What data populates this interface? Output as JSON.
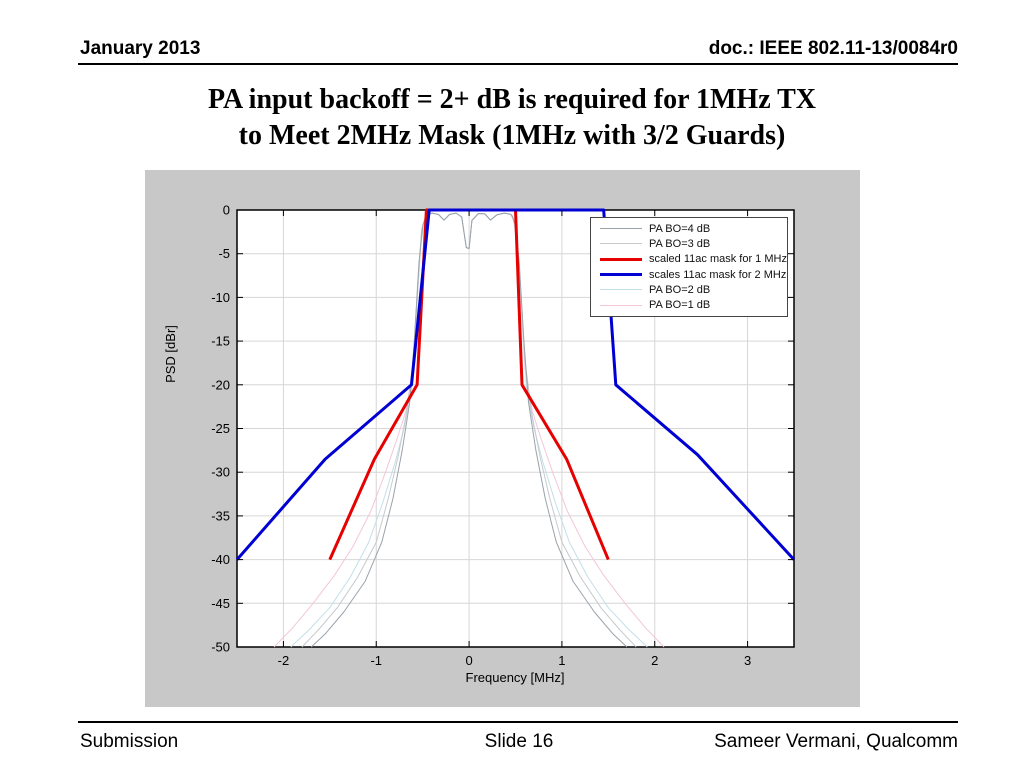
{
  "header": {
    "date": "January 2013",
    "doc": "doc.: IEEE 802.11-13/0084r0"
  },
  "title_line1": "PA input backoff = 2+ dB is required for 1MHz TX",
  "title_line2": "to Meet 2MHz Mask (1MHz with 3/2 Guards)",
  "footer": {
    "left": "Submission",
    "center": "Slide 16",
    "right": "Sameer Vermani, Qualcomm"
  },
  "chart_data": {
    "type": "line",
    "title": "",
    "xlabel": "Frequency [MHz]",
    "ylabel": "PSD [dBr]",
    "xlim": [
      -2.5,
      3.5
    ],
    "ylim": [
      -50,
      0
    ],
    "xticks": [
      -2,
      -1,
      0,
      1,
      2,
      3
    ],
    "yticks": [
      0,
      -5,
      -10,
      -15,
      -20,
      -25,
      -30,
      -35,
      -40,
      -45,
      -50
    ],
    "grid": true,
    "legend_position": "upper-right-inside",
    "panel_bg": "#c8c8c8",
    "plot_bg": "#ffffff",
    "grid_color": "#d6d6d6",
    "axis_color": "#000000",
    "draw_order": [
      5,
      4,
      1,
      0,
      2,
      3
    ],
    "series": [
      {
        "name": "PA BO=4 dB",
        "color": "#9aa2aa",
        "width": 1,
        "points": [
          [
            -1.7,
            -50
          ],
          [
            -1.55,
            -48.5
          ],
          [
            -1.35,
            -46
          ],
          [
            -1.12,
            -42.5
          ],
          [
            -0.94,
            -38
          ],
          [
            -0.82,
            -33
          ],
          [
            -0.72,
            -27.5
          ],
          [
            -0.64,
            -22
          ],
          [
            -0.59,
            -15
          ],
          [
            -0.54,
            -6
          ],
          [
            -0.5,
            -1.8
          ],
          [
            -0.47,
            -0.85
          ],
          [
            -0.45,
            -0.5
          ],
          [
            -0.4,
            -0.35
          ],
          [
            -0.33,
            -0.5
          ],
          [
            -0.27,
            -1.15
          ],
          [
            -0.21,
            -0.5
          ],
          [
            -0.14,
            -0.35
          ],
          [
            -0.08,
            -0.8
          ],
          [
            -0.03,
            -4.3
          ],
          [
            0,
            -4.4
          ],
          [
            0.03,
            -1.2
          ],
          [
            0.1,
            -0.4
          ],
          [
            0.17,
            -0.45
          ],
          [
            0.23,
            -1.15
          ],
          [
            0.3,
            -0.55
          ],
          [
            0.38,
            -0.35
          ],
          [
            0.45,
            -0.5
          ],
          [
            0.47,
            -0.85
          ],
          [
            0.5,
            -1.8
          ],
          [
            0.54,
            -6
          ],
          [
            0.59,
            -15
          ],
          [
            0.64,
            -22
          ],
          [
            0.72,
            -27.5
          ],
          [
            0.82,
            -33
          ],
          [
            0.94,
            -38
          ],
          [
            1.12,
            -42.5
          ],
          [
            1.35,
            -46
          ],
          [
            1.55,
            -48.5
          ],
          [
            1.7,
            -50
          ]
        ]
      },
      {
        "name": "PA BO=3 dB",
        "color": "#c6cacd",
        "width": 1,
        "points": [
          [
            -1.8,
            -50
          ],
          [
            -1.62,
            -48
          ],
          [
            -1.42,
            -45.5
          ],
          [
            -1.2,
            -42
          ],
          [
            -1.0,
            -38
          ],
          [
            -0.87,
            -33
          ],
          [
            -0.76,
            -28
          ],
          [
            -0.67,
            -23
          ],
          [
            -0.6,
            -17
          ],
          [
            -0.55,
            -8
          ],
          [
            -0.51,
            -2.2
          ],
          [
            -0.47,
            -0.8
          ],
          [
            -0.45,
            -0.5
          ],
          [
            -0.4,
            -0.35
          ],
          [
            -0.33,
            -0.5
          ],
          [
            -0.27,
            -1.15
          ],
          [
            -0.21,
            -0.5
          ],
          [
            -0.14,
            -0.35
          ],
          [
            -0.08,
            -0.8
          ],
          [
            -0.03,
            -4.3
          ],
          [
            0,
            -4.4
          ],
          [
            0.03,
            -1.2
          ],
          [
            0.1,
            -0.4
          ],
          [
            0.17,
            -0.45
          ],
          [
            0.23,
            -1.15
          ],
          [
            0.3,
            -0.55
          ],
          [
            0.38,
            -0.35
          ],
          [
            0.45,
            -0.5
          ],
          [
            0.47,
            -0.8
          ],
          [
            0.51,
            -2.2
          ],
          [
            0.55,
            -8
          ],
          [
            0.6,
            -17
          ],
          [
            0.67,
            -23
          ],
          [
            0.76,
            -28
          ],
          [
            0.87,
            -33
          ],
          [
            1.0,
            -38
          ],
          [
            1.2,
            -42
          ],
          [
            1.42,
            -45.5
          ],
          [
            1.62,
            -48
          ],
          [
            1.8,
            -50
          ]
        ]
      },
      {
        "name": "scaled 11ac mask for 1 MHz",
        "color": "#e60000",
        "width": 3,
        "points": [
          [
            -1.5,
            -40
          ],
          [
            -1.02,
            -28.5
          ],
          [
            -0.56,
            -20
          ],
          [
            -0.46,
            0
          ],
          [
            0.5,
            0
          ],
          [
            0.57,
            -20
          ],
          [
            1.05,
            -28.5
          ],
          [
            1.5,
            -40
          ]
        ]
      },
      {
        "name": "scales 11ac mask for 2 MHz",
        "color": "#0000d2",
        "width": 3,
        "points": [
          [
            -2.5,
            -40
          ],
          [
            -1.55,
            -28.5
          ],
          [
            -0.62,
            -20
          ],
          [
            -0.43,
            0
          ],
          [
            1.45,
            0
          ],
          [
            1.58,
            -20
          ],
          [
            2.46,
            -28
          ],
          [
            3.5,
            -40
          ]
        ]
      },
      {
        "name": "PA BO=2 dB",
        "color": "#c3dfe9",
        "width": 1,
        "points": [
          [
            -1.92,
            -50
          ],
          [
            -1.72,
            -48
          ],
          [
            -1.5,
            -45.5
          ],
          [
            -1.28,
            -42
          ],
          [
            -1.08,
            -38
          ],
          [
            -0.93,
            -33.5
          ],
          [
            -0.8,
            -29
          ],
          [
            -0.7,
            -25
          ],
          [
            -0.62,
            -20.5
          ],
          [
            -0.57,
            -12
          ],
          [
            -0.52,
            -4
          ],
          [
            -0.48,
            -1.2
          ],
          [
            -0.45,
            -0.5
          ],
          [
            -0.4,
            -0.35
          ],
          [
            -0.33,
            -0.5
          ],
          [
            -0.27,
            -1.15
          ],
          [
            -0.21,
            -0.5
          ],
          [
            -0.14,
            -0.35
          ],
          [
            -0.08,
            -0.8
          ],
          [
            -0.03,
            -4.3
          ],
          [
            0,
            -4.4
          ],
          [
            0.03,
            -1.2
          ],
          [
            0.1,
            -0.4
          ],
          [
            0.17,
            -0.45
          ],
          [
            0.23,
            -1.15
          ],
          [
            0.3,
            -0.55
          ],
          [
            0.38,
            -0.35
          ],
          [
            0.45,
            -0.5
          ],
          [
            0.48,
            -1.2
          ],
          [
            0.52,
            -4
          ],
          [
            0.57,
            -12
          ],
          [
            0.62,
            -20.5
          ],
          [
            0.7,
            -25
          ],
          [
            0.8,
            -29
          ],
          [
            0.93,
            -33.5
          ],
          [
            1.08,
            -38
          ],
          [
            1.28,
            -42
          ],
          [
            1.5,
            -45.5
          ],
          [
            1.72,
            -48
          ],
          [
            1.92,
            -50
          ]
        ]
      },
      {
        "name": "PA BO=1 dB",
        "color": "#f3c6da",
        "width": 1,
        "points": [
          [
            -2.1,
            -50
          ],
          [
            -1.9,
            -47.8
          ],
          [
            -1.68,
            -45
          ],
          [
            -1.45,
            -41.8
          ],
          [
            -1.25,
            -38.5
          ],
          [
            -1.06,
            -34.5
          ],
          [
            -0.9,
            -30
          ],
          [
            -0.78,
            -26.3
          ],
          [
            -0.68,
            -23
          ],
          [
            -0.6,
            -18
          ],
          [
            -0.55,
            -9
          ],
          [
            -0.51,
            -2.5
          ],
          [
            -0.47,
            -0.7
          ],
          [
            -0.45,
            -0.5
          ],
          [
            -0.4,
            -0.35
          ],
          [
            -0.33,
            -0.5
          ],
          [
            -0.27,
            -1.15
          ],
          [
            -0.21,
            -0.5
          ],
          [
            -0.14,
            -0.35
          ],
          [
            -0.08,
            -0.8
          ],
          [
            -0.03,
            -4.3
          ],
          [
            0,
            -4.4
          ],
          [
            0.03,
            -1.2
          ],
          [
            0.1,
            -0.4
          ],
          [
            0.17,
            -0.45
          ],
          [
            0.23,
            -1.15
          ],
          [
            0.3,
            -0.55
          ],
          [
            0.38,
            -0.35
          ],
          [
            0.45,
            -0.5
          ],
          [
            0.47,
            -0.7
          ],
          [
            0.51,
            -2.5
          ],
          [
            0.55,
            -9
          ],
          [
            0.6,
            -18
          ],
          [
            0.68,
            -23
          ],
          [
            0.78,
            -26.3
          ],
          [
            0.9,
            -30
          ],
          [
            1.06,
            -34.5
          ],
          [
            1.25,
            -38.5
          ],
          [
            1.45,
            -41.8
          ],
          [
            1.68,
            -45
          ],
          [
            1.9,
            -47.8
          ],
          [
            2.1,
            -50
          ]
        ]
      }
    ]
  }
}
